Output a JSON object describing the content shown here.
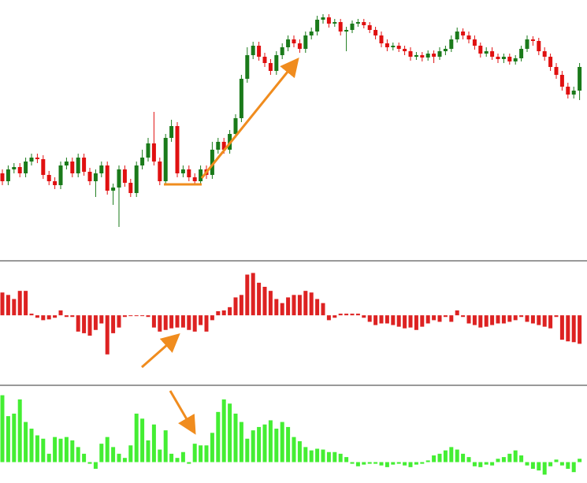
{
  "chart_data": [
    {
      "type": "candlestick",
      "up_color": "#1a7a1a",
      "down_color": "#e01010",
      "ylim": [
        0,
        330
      ],
      "open": [
        110,
        100,
        115,
        118,
        110,
        125,
        130,
        128,
        108,
        100,
        95,
        120,
        125,
        110,
        130,
        112,
        100,
        110,
        120,
        88,
        92,
        115,
        98,
        85,
        120,
        130,
        148,
        125,
        100,
        155,
        170,
        110,
        115,
        105,
        100,
        115,
        108,
        140,
        150,
        140,
        160,
        180,
        230,
        260,
        272,
        258,
        250,
        240,
        260,
        270,
        280,
        275,
        268,
        285,
        290,
        305,
        308,
        300,
        302,
        290,
        292,
        300,
        302,
        298,
        292,
        285,
        275,
        270,
        272,
        268,
        265,
        258,
        260,
        257,
        262,
        258,
        265,
        268,
        280,
        290,
        285,
        280,
        272,
        262,
        265,
        258,
        255,
        258,
        252,
        256,
        268,
        280,
        278,
        265,
        258,
        245,
        235,
        220,
        210,
        215
      ],
      "high": [
        115,
        120,
        123,
        123,
        130,
        135,
        135,
        133,
        113,
        105,
        125,
        130,
        130,
        135,
        135,
        117,
        115,
        125,
        125,
        97,
        120,
        120,
        103,
        125,
        140,
        155,
        188,
        130,
        160,
        178,
        175,
        120,
        120,
        110,
        120,
        120,
        150,
        155,
        155,
        165,
        185,
        235,
        270,
        277,
        277,
        263,
        255,
        265,
        275,
        285,
        285,
        280,
        290,
        295,
        310,
        312,
        312,
        306,
        306,
        296,
        304,
        306,
        306,
        302,
        296,
        290,
        280,
        276,
        276,
        272,
        270,
        264,
        264,
        266,
        266,
        270,
        272,
        285,
        295,
        294,
        290,
        285,
        276,
        270,
        270,
        262,
        262,
        262,
        260,
        272,
        285,
        284,
        282,
        270,
        262,
        250,
        240,
        225,
        220,
        250
      ],
      "low": [
        95,
        95,
        110,
        105,
        105,
        120,
        123,
        103,
        95,
        90,
        90,
        115,
        105,
        105,
        107,
        95,
        80,
        105,
        83,
        70,
        42,
        93,
        80,
        80,
        115,
        125,
        120,
        95,
        95,
        150,
        105,
        105,
        100,
        95,
        95,
        103,
        103,
        135,
        135,
        135,
        155,
        175,
        225,
        255,
        253,
        245,
        235,
        235,
        255,
        265,
        270,
        263,
        263,
        280,
        285,
        300,
        295,
        296,
        285,
        265,
        288,
        296,
        294,
        288,
        280,
        270,
        265,
        266,
        264,
        260,
        253,
        254,
        252,
        253,
        250,
        254,
        260,
        264,
        276,
        280,
        275,
        267,
        257,
        258,
        254,
        250,
        250,
        248,
        248,
        252,
        264,
        272,
        260,
        253,
        240,
        230,
        215,
        205,
        205,
        203
      ],
      "close": [
        100,
        115,
        118,
        110,
        125,
        130,
        128,
        108,
        100,
        95,
        120,
        125,
        110,
        130,
        112,
        100,
        110,
        120,
        88,
        92,
        115,
        98,
        85,
        120,
        130,
        148,
        125,
        100,
        155,
        170,
        110,
        115,
        105,
        100,
        115,
        108,
        140,
        150,
        140,
        160,
        180,
        230,
        260,
        272,
        258,
        250,
        240,
        260,
        270,
        280,
        275,
        268,
        285,
        290,
        305,
        308,
        300,
        302,
        290,
        292,
        300,
        302,
        298,
        292,
        285,
        275,
        270,
        272,
        268,
        265,
        258,
        260,
        257,
        262,
        258,
        265,
        268,
        280,
        290,
        285,
        280,
        272,
        262,
        265,
        258,
        255,
        258,
        252,
        256,
        268,
        280,
        278,
        265,
        258,
        245,
        235,
        220,
        210,
        215,
        245
      ]
    },
    {
      "type": "bar",
      "color": "#dd2222",
      "ylim": [
        -85,
        65
      ],
      "values": [
        28,
        25,
        20,
        30,
        30,
        2,
        -3,
        -6,
        -5,
        -3,
        6,
        -2,
        -2,
        -20,
        -22,
        -25,
        -18,
        -10,
        -48,
        -22,
        -15,
        -2,
        0,
        0,
        0,
        -2,
        -15,
        -20,
        -18,
        -16,
        -15,
        -15,
        -18,
        -20,
        -12,
        -20,
        -6,
        5,
        6,
        10,
        22,
        25,
        50,
        52,
        40,
        35,
        30,
        20,
        15,
        22,
        25,
        25,
        30,
        28,
        20,
        15,
        -6,
        -3,
        2,
        2,
        2,
        2,
        -3,
        -8,
        -12,
        -10,
        -10,
        -12,
        -14,
        -16,
        -15,
        -18,
        -14,
        -10,
        -6,
        -8,
        -2,
        -8,
        6,
        -2,
        -10,
        -12,
        -15,
        -14,
        -12,
        -10,
        -10,
        -8,
        -6,
        -2,
        -8,
        -10,
        -12,
        -14,
        -16,
        -2,
        -30,
        -32,
        -33,
        -35
      ]
    },
    {
      "type": "bar",
      "color": "#44ee33",
      "ylim": [
        -25,
        90
      ],
      "values": [
        80,
        55,
        58,
        75,
        48,
        40,
        32,
        28,
        10,
        30,
        28,
        30,
        26,
        18,
        10,
        -2,
        -8,
        22,
        30,
        18,
        10,
        5,
        20,
        58,
        52,
        26,
        45,
        15,
        38,
        10,
        5,
        12,
        -2,
        22,
        20,
        20,
        35,
        60,
        75,
        70,
        58,
        48,
        28,
        38,
        42,
        45,
        50,
        40,
        48,
        42,
        30,
        25,
        18,
        14,
        16,
        15,
        12,
        12,
        10,
        6,
        -2,
        -5,
        -3,
        -2,
        -2,
        -4,
        -6,
        -3,
        -2,
        -4,
        -6,
        -3,
        -2,
        2,
        8,
        10,
        14,
        18,
        15,
        10,
        6,
        -5,
        -6,
        -3,
        -4,
        4,
        6,
        10,
        14,
        8,
        -4,
        -8,
        -10,
        -15,
        -5,
        3,
        -4,
        -8,
        -12,
        4
      ]
    }
  ]
}
